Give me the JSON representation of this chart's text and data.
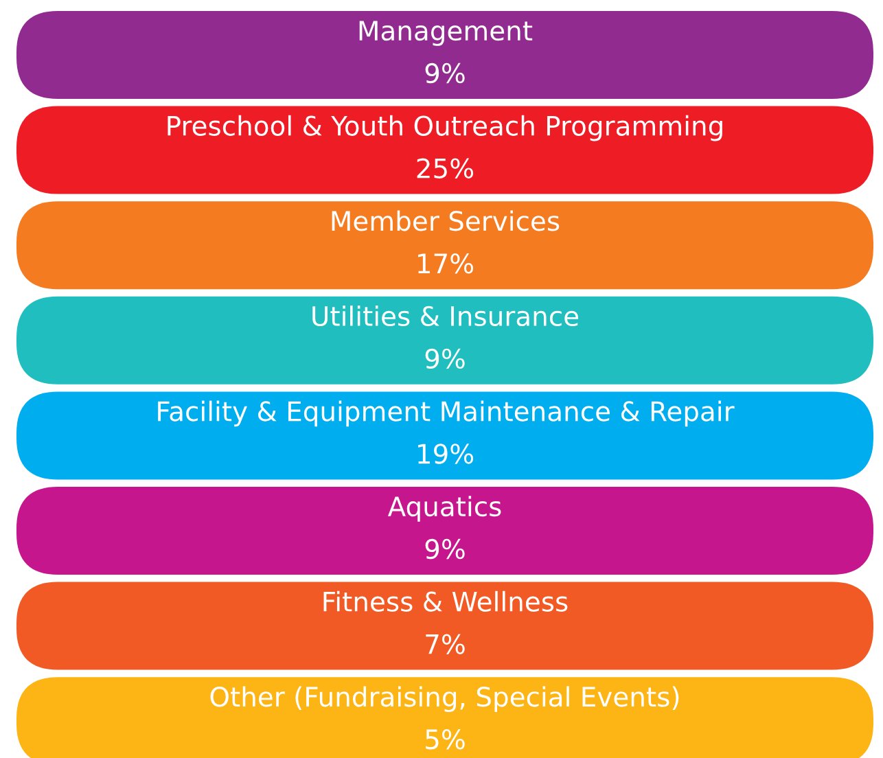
{
  "chart_data": {
    "type": "other",
    "categories": [
      "Management",
      "Preschool & Youth Outreach Programming",
      "Member Services",
      "Utilities & Insurance",
      "Facility & Equipment Maintenance & Repair",
      "Aquatics",
      "Fitness & Wellness",
      "Other (Fundraising, Special Events)"
    ],
    "values": [
      9,
      25,
      17,
      9,
      19,
      9,
      7,
      5
    ],
    "value_labels": [
      "9%",
      "25%",
      "17%",
      "9%",
      "19%",
      "9%",
      "7%",
      "5%"
    ],
    "colors": [
      "#922b8f",
      "#ee1c25",
      "#f47b20",
      "#21bec0",
      "#00aeef",
      "#c6168d",
      "#f15a24",
      "#fdb515"
    ]
  }
}
